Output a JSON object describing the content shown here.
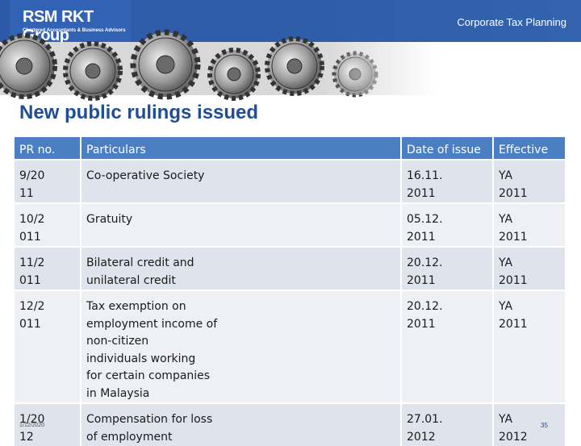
{
  "header": {
    "logo_title": "RSM RKT Group",
    "logo_subtitle": "Chartered Accountants & Business Advisors",
    "presentation_title": "Corporate Tax Planning"
  },
  "slide": {
    "title": "New public rulings issued"
  },
  "table": {
    "columns": [
      "PR no.",
      "Particulars",
      "Date of issue",
      "Effective"
    ],
    "rows": [
      {
        "pr_no": [
          "9/20",
          "11"
        ],
        "particulars": [
          "Co-operative Society"
        ],
        "date": [
          "16.11.",
          "2011"
        ],
        "effective": [
          "YA",
          "2011"
        ]
      },
      {
        "pr_no": [
          "10/2",
          "011"
        ],
        "particulars": [
          "Gratuity"
        ],
        "date": [
          "05.12.",
          "2011"
        ],
        "effective": [
          "YA",
          "2011"
        ]
      },
      {
        "pr_no": [
          "11/2",
          "011"
        ],
        "particulars": [
          "Bilateral credit and",
          "unilateral credit"
        ],
        "date": [
          "20.12.",
          "2011"
        ],
        "effective": [
          "YA",
          "2011"
        ]
      },
      {
        "pr_no": [
          "12/2",
          "011"
        ],
        "particulars": [
          "Tax exemption on",
          "employment income of",
          "non-citizen",
          "individuals working",
          "for certain companies",
          "in Malaysia"
        ],
        "date": [
          "20.12.",
          "2011"
        ],
        "effective": [
          "YA",
          "2011"
        ]
      },
      {
        "pr_no": [
          "1/20",
          "12"
        ],
        "particulars": [
          "Compensation for loss",
          "of employment"
        ],
        "date": [
          "27.01.",
          "2012"
        ],
        "effective": [
          "YA",
          "2012"
        ]
      }
    ]
  },
  "footer": {
    "date": "1/12/2020",
    "page_number": "35"
  },
  "colors": {
    "header_bar": "#2f5ea9",
    "title_text": "#1f4e96",
    "table_header": "#4a7fc4",
    "row_a": "#dfe3ec",
    "row_b": "#eef0f5"
  }
}
